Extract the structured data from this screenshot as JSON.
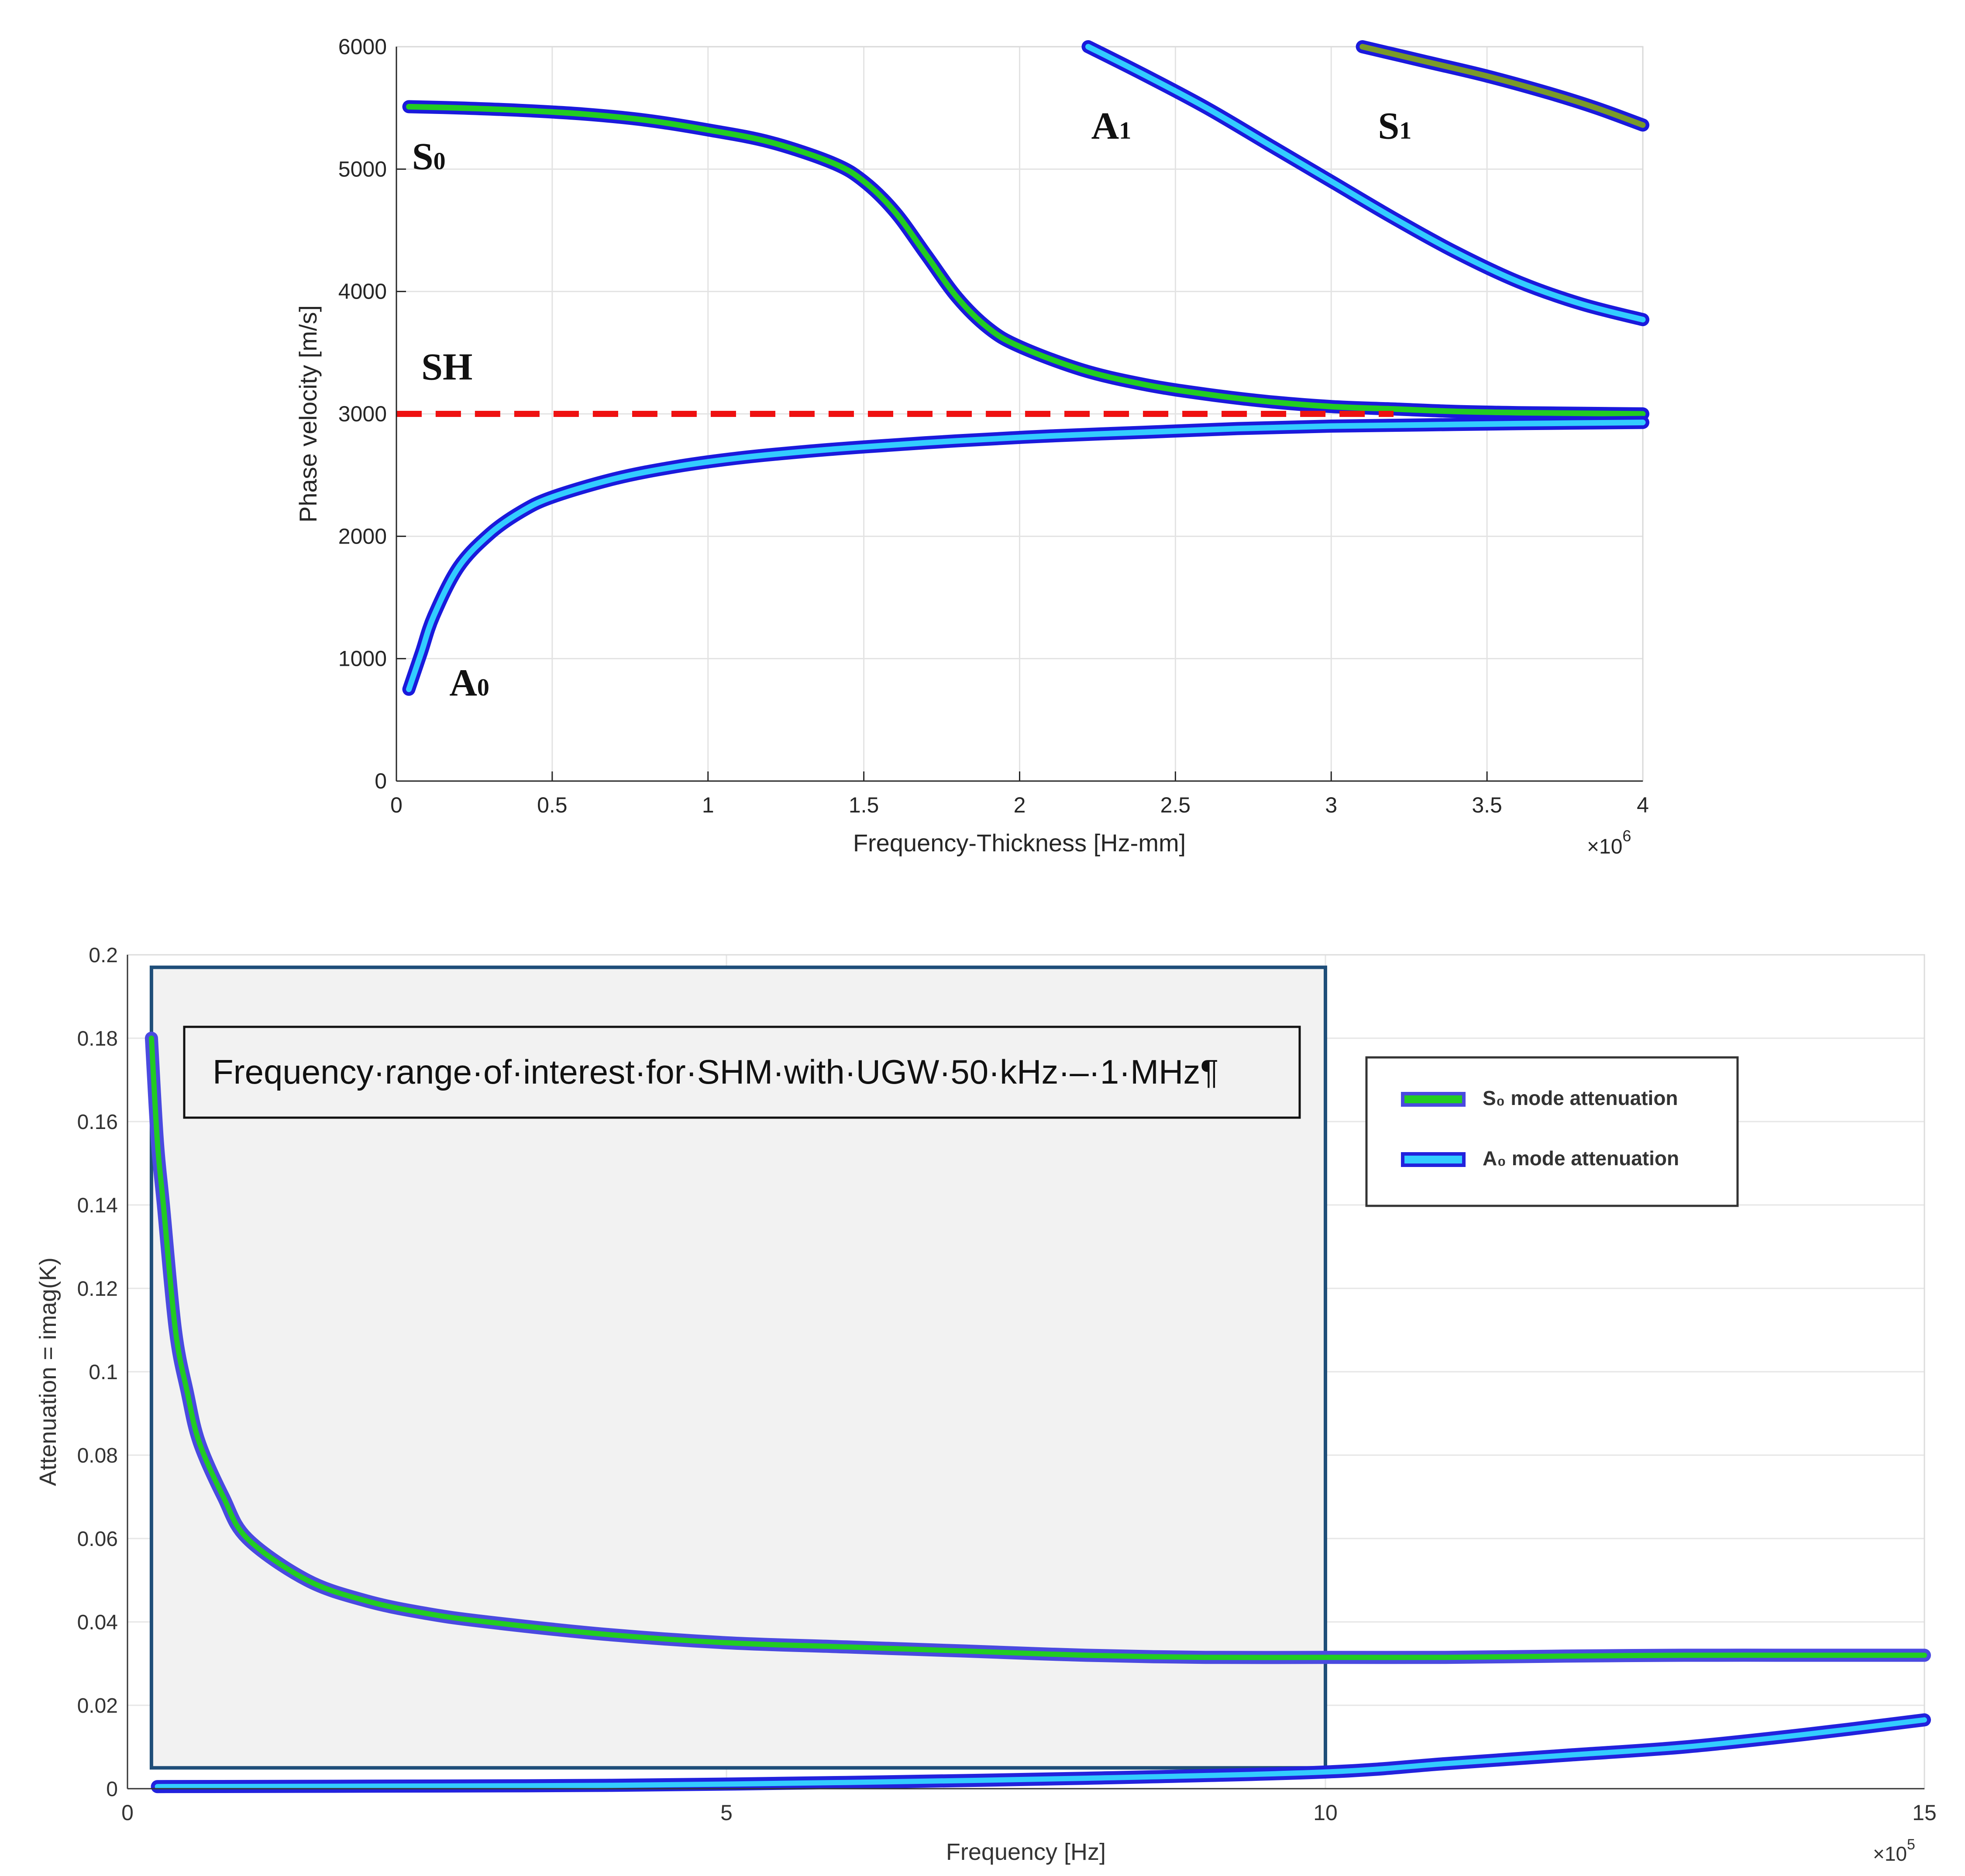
{
  "chart_data": [
    {
      "type": "line",
      "xlabel": "Frequency-Thickness [Hz-mm]",
      "ylabel": "Phase velocity [m/s]",
      "x_multiplier_label": "×10",
      "x_multiplier_exp": "6",
      "xlim": [
        0,
        4000000
      ],
      "ylim": [
        0,
        6000
      ],
      "x_ticks": [
        0,
        500000,
        1000000,
        1500000,
        2000000,
        2500000,
        3000000,
        3500000,
        4000000
      ],
      "x_tick_labels": [
        "0",
        "0.5",
        "1",
        "1.5",
        "2",
        "2.5",
        "3",
        "3.5",
        "4"
      ],
      "y_ticks": [
        0,
        1000,
        2000,
        3000,
        4000,
        5000,
        6000
      ],
      "y_tick_labels": [
        "0",
        "1000",
        "2000",
        "3000",
        "4000",
        "5000",
        "6000"
      ],
      "grid": true,
      "series": [
        {
          "name": "S",
          "subscript": "0",
          "outline_color": "#1a1adc",
          "fill_color": "#22cc22",
          "x": [
            40000,
            200000,
            400000,
            600000,
            800000,
            1000000,
            1200000,
            1400000,
            1500000,
            1600000,
            1700000,
            1800000,
            1900000,
            2000000,
            2200000,
            2400000,
            2600000,
            2800000,
            3000000,
            3200000,
            3400000,
            3600000,
            3800000,
            4000000
          ],
          "y": [
            5510,
            5500,
            5480,
            5450,
            5400,
            5320,
            5220,
            5050,
            4900,
            4650,
            4300,
            3950,
            3700,
            3550,
            3360,
            3240,
            3160,
            3100,
            3060,
            3040,
            3020,
            3010,
            3005,
            3000
          ],
          "label_pos": [
            50000,
            5000
          ]
        },
        {
          "name": "A",
          "subscript": "0",
          "outline_color": "#1a1adc",
          "fill_color": "#33ccff",
          "x": [
            40000,
            80000,
            120000,
            200000,
            300000,
            400000,
            500000,
            700000,
            900000,
            1100000,
            1300000,
            1500000,
            1800000,
            2100000,
            2400000,
            2700000,
            3000000,
            3300000,
            3600000,
            4000000
          ],
          "y": [
            750,
            1050,
            1350,
            1750,
            2020,
            2200,
            2320,
            2470,
            2570,
            2640,
            2690,
            2730,
            2780,
            2820,
            2850,
            2880,
            2900,
            2910,
            2920,
            2930
          ],
          "label_pos": [
            170000,
            700
          ]
        },
        {
          "name": "A",
          "subscript": "1",
          "outline_color": "#1a1adc",
          "fill_color": "#33ccff",
          "x": [
            2220000,
            2400000,
            2600000,
            2800000,
            3000000,
            3200000,
            3400000,
            3600000,
            3800000,
            4000000
          ],
          "y": [
            6000,
            5770,
            5500,
            5200,
            4900,
            4600,
            4320,
            4080,
            3900,
            3770
          ],
          "label_pos": [
            2230000,
            5250
          ]
        },
        {
          "name": "S",
          "subscript": "1",
          "outline_color": "#1a1adc",
          "fill_color": "#7a9a2a",
          "x": [
            3100000,
            3300000,
            3500000,
            3700000,
            3850000,
            4000000
          ],
          "y": [
            6000,
            5880,
            5760,
            5620,
            5500,
            5360
          ],
          "label_pos": [
            3150000,
            5250
          ]
        },
        {
          "name": "SH",
          "line_color": "#ee1111",
          "dashed": true,
          "x": [
            0,
            3200000
          ],
          "y": [
            3000,
            3000
          ],
          "label_pos": [
            80000,
            3280
          ]
        }
      ]
    },
    {
      "type": "line",
      "xlabel": "Frequency [Hz]",
      "ylabel": "Attenuation = imag(K)",
      "x_multiplier_label": "×10",
      "x_multiplier_exp": "5",
      "xlim": [
        0,
        1500000
      ],
      "ylim": [
        0,
        0.2
      ],
      "x_ticks": [
        0,
        500000,
        1000000,
        1500000
      ],
      "x_tick_labels": [
        "0",
        "5",
        "10",
        "15"
      ],
      "y_ticks": [
        0,
        0.02,
        0.04,
        0.06,
        0.08,
        0.1,
        0.12,
        0.14,
        0.16,
        0.18,
        0.2
      ],
      "y_tick_labels": [
        "0",
        "0.02",
        "0.04",
        "0.06",
        "0.08",
        "0.1",
        "0.12",
        "0.14",
        "0.16",
        "0.18",
        "0.2"
      ],
      "grid": true,
      "series": [
        {
          "name": "S₀ mode attenuation",
          "outline_color": "#4a4ae0",
          "fill_color": "#22cc22",
          "x": [
            20000,
            25000,
            30000,
            40000,
            50000,
            60000,
            80000,
            100000,
            150000,
            200000,
            250000,
            300000,
            400000,
            500000,
            600000,
            700000,
            800000,
            900000,
            1000000,
            1100000,
            1200000,
            1300000,
            1400000,
            1500000
          ],
          "y": [
            0.18,
            0.155,
            0.14,
            0.11,
            0.095,
            0.083,
            0.07,
            0.06,
            0.05,
            0.045,
            0.042,
            0.04,
            0.037,
            0.035,
            0.034,
            0.033,
            0.032,
            0.0315,
            0.0315,
            0.0315,
            0.0318,
            0.032,
            0.032,
            0.032
          ]
        },
        {
          "name": "A₀ mode attenuation",
          "outline_color": "#2222dd",
          "fill_color": "#33ccff",
          "x": [
            25000,
            200000,
            400000,
            600000,
            800000,
            1000000,
            1100000,
            1200000,
            1300000,
            1400000,
            1500000
          ],
          "y": [
            0.0005,
            0.0006,
            0.0008,
            0.0015,
            0.0025,
            0.004,
            0.006,
            0.008,
            0.01,
            0.013,
            0.0165
          ]
        }
      ],
      "annotation": {
        "text": "Frequency·range·of·interest·for·SHM·with·UGW·50·kHz·–·1·MHz¶",
        "shade_color": "#f2f2f2",
        "border_color": "#1f4e79",
        "x_range": [
          20000,
          1000000
        ],
        "y_range": [
          0.005,
          0.197
        ]
      },
      "legend_position": "top-right"
    }
  ]
}
